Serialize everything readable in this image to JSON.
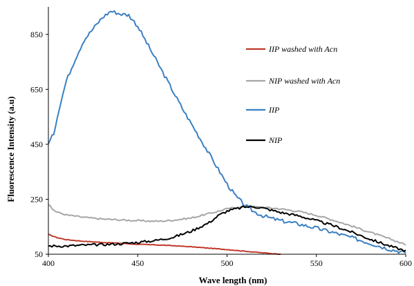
{
  "chart_data": {
    "type": "line",
    "title": "",
    "xlabel": "Wave length (nm)",
    "ylabel": "Fluorescence Intensity (a.u)",
    "xlim": [
      400,
      600
    ],
    "ylim": [
      50,
      950
    ],
    "xticks": [
      "400",
      "450",
      "500",
      "550",
      "600"
    ],
    "yticks": [
      "50",
      "250",
      "450",
      "650",
      "850"
    ],
    "grid": false,
    "legend_position": "right",
    "series": [
      {
        "name": "IIP washed with Acn",
        "color": "#c0392b",
        "x": [
          400,
          405,
          410,
          420,
          430,
          440,
          450,
          460,
          470,
          480,
          490,
          500,
          510,
          520,
          530
        ],
        "y": [
          122,
          110,
          103,
          97,
          93,
          90,
          86,
          84,
          81,
          77,
          72,
          67,
          61,
          55,
          50
        ]
      },
      {
        "name": "NIP washed with Acn",
        "color": "#a6a6a6",
        "x": [
          400,
          402,
          405,
          410,
          420,
          430,
          440,
          450,
          460,
          465,
          470,
          480,
          490,
          500,
          505,
          510,
          520,
          530,
          540,
          550,
          560,
          570,
          580,
          590,
          600
        ],
        "y": [
          232,
          215,
          203,
          193,
          184,
          178,
          175,
          172,
          170,
          171,
          174,
          182,
          198,
          215,
          221,
          224,
          221,
          215,
          206,
          192,
          173,
          152,
          130,
          108,
          85
        ]
      },
      {
        "name": "IIP",
        "color": "#3a7fc1",
        "x": [
          400,
          403,
          406,
          410,
          415,
          420,
          425,
          430,
          435,
          440,
          445,
          450,
          455,
          460,
          465,
          470,
          475,
          480,
          485,
          490,
          495,
          500,
          505,
          510,
          515,
          520,
          525,
          530,
          540,
          550,
          560,
          570,
          580,
          590,
          600
        ],
        "y": [
          450,
          490,
          580,
          680,
          760,
          830,
          870,
          910,
          935,
          925,
          920,
          880,
          820,
          760,
          700,
          640,
          580,
          525,
          470,
          415,
          360,
          305,
          260,
          228,
          205,
          190,
          180,
          172,
          160,
          145,
          128,
          110,
          90,
          70,
          55
        ]
      },
      {
        "name": "NIP",
        "color": "#000000",
        "x": [
          400,
          410,
          420,
          430,
          440,
          450,
          460,
          470,
          480,
          490,
          495,
          500,
          505,
          510,
          515,
          520,
          525,
          530,
          540,
          550,
          560,
          570,
          580,
          590,
          600
        ],
        "y": [
          80,
          80,
          83,
          85,
          88,
          93,
          100,
          112,
          134,
          165,
          190,
          207,
          215,
          222,
          223,
          218,
          210,
          202,
          190,
          172,
          153,
          130,
          105,
          82,
          62
        ]
      }
    ]
  }
}
